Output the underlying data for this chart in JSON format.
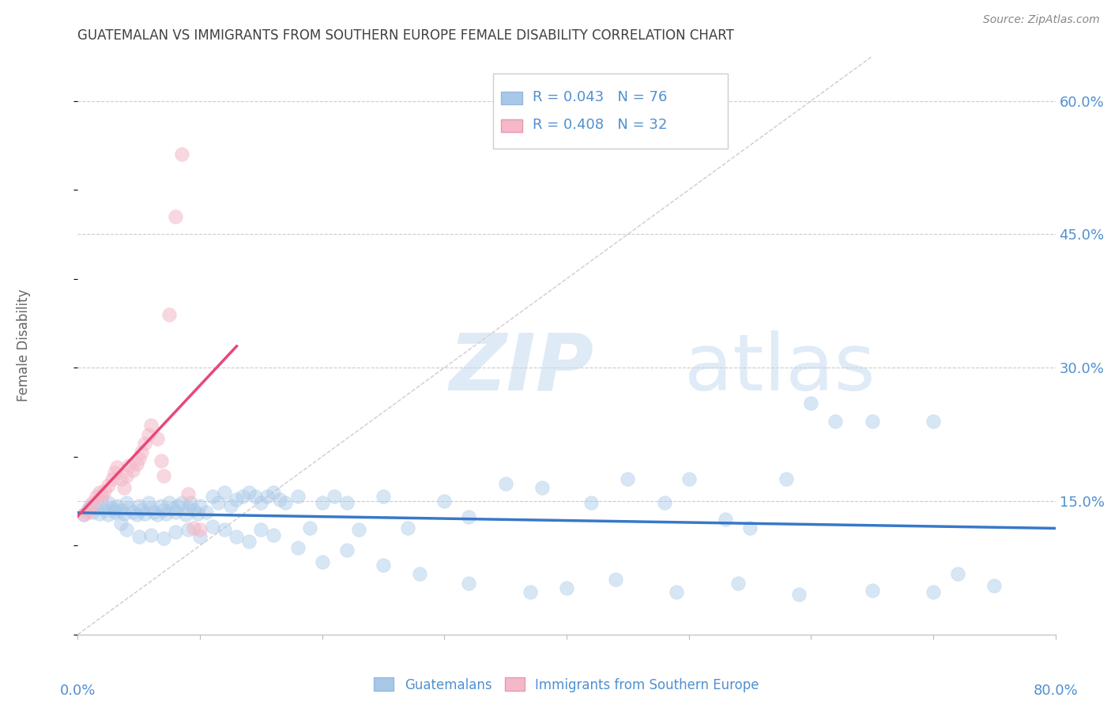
{
  "title": "GUATEMALAN VS IMMIGRANTS FROM SOUTHERN EUROPE FEMALE DISABILITY CORRELATION CHART",
  "source": "Source: ZipAtlas.com",
  "ylabel": "Female Disability",
  "xlim": [
    0.0,
    0.8
  ],
  "ylim": [
    0.0,
    0.65
  ],
  "watermark_zip": "ZIP",
  "watermark_atlas": "atlas",
  "legend_r1": "R = 0.043",
  "legend_n1": "N = 76",
  "legend_r2": "R = 0.408",
  "legend_n2": "N = 32",
  "legend_label1": "Guatemalans",
  "legend_label2": "Immigrants from Southern Europe",
  "color_blue": "#a8c8e8",
  "color_pink": "#f4b8c8",
  "color_blue_line": "#3878c8",
  "color_pink_line": "#e84878",
  "color_diag": "#d8c8c8",
  "title_color": "#404040",
  "label_color": "#5090d0",
  "blue_x": [
    0.005,
    0.008,
    0.01,
    0.012,
    0.015,
    0.018,
    0.02,
    0.022,
    0.025,
    0.028,
    0.03,
    0.032,
    0.035,
    0.038,
    0.04,
    0.042,
    0.045,
    0.048,
    0.05,
    0.052,
    0.055,
    0.058,
    0.06,
    0.062,
    0.065,
    0.068,
    0.07,
    0.072,
    0.075,
    0.078,
    0.08,
    0.082,
    0.085,
    0.088,
    0.09,
    0.092,
    0.095,
    0.098,
    0.1,
    0.105,
    0.11,
    0.115,
    0.12,
    0.125,
    0.13,
    0.135,
    0.14,
    0.145,
    0.15,
    0.155,
    0.16,
    0.165,
    0.17,
    0.18,
    0.19,
    0.2,
    0.21,
    0.22,
    0.23,
    0.25,
    0.27,
    0.3,
    0.32,
    0.35,
    0.38,
    0.42,
    0.45,
    0.48,
    0.5,
    0.53,
    0.55,
    0.58,
    0.6,
    0.62,
    0.65,
    0.7
  ],
  "blue_y": [
    0.135,
    0.14,
    0.145,
    0.138,
    0.142,
    0.136,
    0.148,
    0.14,
    0.135,
    0.142,
    0.138,
    0.145,
    0.14,
    0.136,
    0.148,
    0.142,
    0.138,
    0.135,
    0.145,
    0.14,
    0.136,
    0.148,
    0.142,
    0.138,
    0.135,
    0.145,
    0.14,
    0.136,
    0.148,
    0.142,
    0.138,
    0.145,
    0.148,
    0.135,
    0.142,
    0.148,
    0.14,
    0.136,
    0.145,
    0.138,
    0.155,
    0.148,
    0.16,
    0.145,
    0.152,
    0.155,
    0.16,
    0.155,
    0.148,
    0.155,
    0.16,
    0.152,
    0.148,
    0.155,
    0.12,
    0.148,
    0.155,
    0.148,
    0.118,
    0.155,
    0.12,
    0.15,
    0.132,
    0.17,
    0.165,
    0.148,
    0.175,
    0.148,
    0.175,
    0.13,
    0.12,
    0.175,
    0.26,
    0.24,
    0.24,
    0.24
  ],
  "blue_x2": [
    0.025,
    0.03,
    0.035,
    0.04,
    0.05,
    0.06,
    0.07,
    0.08,
    0.09,
    0.1,
    0.11,
    0.12,
    0.13,
    0.14,
    0.15,
    0.16,
    0.18,
    0.2,
    0.22,
    0.25,
    0.28,
    0.32,
    0.37,
    0.4,
    0.44,
    0.49,
    0.54,
    0.59,
    0.65,
    0.7,
    0.72,
    0.75
  ],
  "blue_y2": [
    0.148,
    0.14,
    0.125,
    0.118,
    0.11,
    0.112,
    0.108,
    0.115,
    0.118,
    0.11,
    0.122,
    0.118,
    0.11,
    0.105,
    0.118,
    0.112,
    0.098,
    0.082,
    0.095,
    0.078,
    0.068,
    0.058,
    0.048,
    0.052,
    0.062,
    0.048,
    0.058,
    0.045,
    0.05,
    0.048,
    0.068,
    0.055
  ],
  "pink_x": [
    0.005,
    0.008,
    0.01,
    0.012,
    0.015,
    0.018,
    0.02,
    0.022,
    0.025,
    0.028,
    0.03,
    0.032,
    0.035,
    0.038,
    0.04,
    0.042,
    0.045,
    0.048,
    0.05,
    0.052,
    0.055,
    0.058,
    0.06,
    0.065,
    0.068,
    0.07,
    0.075,
    0.08,
    0.085,
    0.09,
    0.095,
    0.1
  ],
  "pink_y": [
    0.135,
    0.138,
    0.142,
    0.148,
    0.155,
    0.16,
    0.155,
    0.162,
    0.168,
    0.175,
    0.182,
    0.188,
    0.175,
    0.165,
    0.178,
    0.19,
    0.185,
    0.192,
    0.198,
    0.205,
    0.215,
    0.225,
    0.235,
    0.22,
    0.195,
    0.178,
    0.36,
    0.47,
    0.54,
    0.158,
    0.12,
    0.118
  ]
}
